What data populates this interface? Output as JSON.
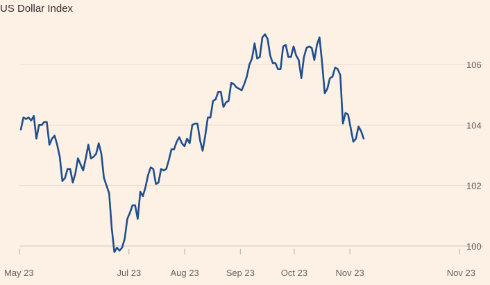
{
  "chart_data": {
    "type": "line",
    "title": "US Dollar Index",
    "xlabel": "",
    "ylabel": "",
    "ylim": [
      99.7,
      107.4
    ],
    "y_ticks": [
      100,
      102,
      104,
      106
    ],
    "y_axis_position": "right",
    "grid": "horizontal",
    "x_ticks": [
      "May 23",
      "Jul 23",
      "Aug 23",
      "Sep 23",
      "Oct 23",
      "Nov 23",
      "Nov 23"
    ],
    "x_tick_dates": [
      "2023-05-23",
      "2023-07-23",
      "2023-08-23",
      "2023-09-23",
      "2023-10-23",
      "2023-11-23",
      "2024-01-23"
    ],
    "xlim": [
      "2023-05-23",
      "2024-01-23"
    ],
    "colors": {
      "line": "#1f4e8c",
      "background": "#fdf1e6"
    },
    "series": [
      {
        "values": [
          103.85,
          104.25,
          104.2,
          104.25,
          104.15,
          104.3,
          103.55,
          104.0,
          104.0,
          104.1,
          104.1,
          103.35,
          103.55,
          103.65,
          103.35,
          102.95,
          102.15,
          102.25,
          102.55,
          102.55,
          102.1,
          102.4,
          102.9,
          102.7,
          102.5,
          102.9,
          103.35,
          102.9,
          102.95,
          103.05,
          103.4,
          103.05,
          102.25,
          102.0,
          101.75,
          100.6,
          99.8,
          99.95,
          99.85,
          99.95,
          100.25,
          100.9,
          101.1,
          101.35,
          101.35,
          100.9,
          101.8,
          101.65,
          101.95,
          102.35,
          102.6,
          102.55,
          102.05,
          102.1,
          102.55,
          102.5,
          102.55,
          102.85,
          103.2,
          103.2,
          103.45,
          103.6,
          103.4,
          103.3,
          103.55,
          103.4,
          104.0,
          104.05,
          104.05,
          103.5,
          103.15,
          103.65,
          104.25,
          104.25,
          104.8,
          104.85,
          105.1,
          105.1,
          104.6,
          104.75,
          104.8,
          105.4,
          105.35,
          105.25,
          105.2,
          105.15,
          105.35,
          105.6,
          106.0,
          106.2,
          106.7,
          106.2,
          106.25,
          106.9,
          107.0,
          106.85,
          106.3,
          106.05,
          106.05,
          105.85,
          105.85,
          106.6,
          106.65,
          106.25,
          106.25,
          106.6,
          106.3,
          106.15,
          105.55,
          106.25,
          106.55,
          106.6,
          106.55,
          106.15,
          106.65,
          106.9,
          106.05,
          105.05,
          105.2,
          105.55,
          105.6,
          105.9,
          105.85,
          105.65,
          104.05,
          104.4,
          104.35,
          103.9,
          103.45,
          103.55,
          103.95,
          103.8,
          103.55
        ]
      }
    ]
  }
}
